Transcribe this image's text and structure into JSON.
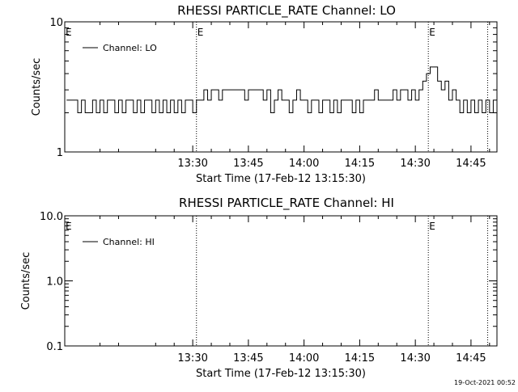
{
  "footer": {
    "timestamp": "19-Oct-2021 00:52"
  },
  "chart_data": [
    {
      "type": "line",
      "title": "RHESSI PARTICLE_RATE Channel: LO",
      "xlabel": "Start Time (17-Feb-12 13:15:30)",
      "ylabel": "Counts/sec",
      "yscale": "log",
      "ylim": [
        1,
        10
      ],
      "ytick_labels": [
        {
          "value": 1,
          "label": "1"
        },
        {
          "value": 10,
          "label": "10"
        }
      ],
      "xlim_minutes": [
        775.5,
        892
      ],
      "xticks": [
        {
          "t": 810,
          "label": "13:30"
        },
        {
          "t": 825,
          "label": "13:45"
        },
        {
          "t": 840,
          "label": "14:00"
        },
        {
          "t": 855,
          "label": "14:15"
        },
        {
          "t": 870,
          "label": "14:30"
        },
        {
          "t": 885,
          "label": "14:45"
        }
      ],
      "event_lines": [
        {
          "t": 811,
          "label": "E"
        },
        {
          "t": 873.5,
          "label": "E"
        },
        {
          "t": 889.5,
          "label": ""
        }
      ],
      "start_marker": "E",
      "legend": {
        "entry": "Channel: LO",
        "placement": "top-left"
      },
      "series": [
        {
          "name": "Channel: LO",
          "color": "#000000",
          "x": [
            776,
            778,
            779,
            780,
            781,
            782,
            783,
            784,
            785,
            786,
            787,
            788,
            789,
            790,
            791,
            792,
            793,
            794,
            795,
            796,
            797,
            798,
            799,
            800,
            801,
            802,
            803,
            804,
            805,
            806,
            807,
            808,
            809,
            810,
            811,
            812,
            813,
            814,
            815,
            816,
            817,
            818,
            819,
            820,
            821,
            822,
            823,
            824,
            825,
            826,
            827,
            828,
            829,
            830,
            831,
            832,
            833,
            834,
            835,
            836,
            837,
            838,
            839,
            840,
            841,
            842,
            843,
            844,
            845,
            846,
            847,
            848,
            849,
            850,
            851,
            852,
            853,
            854,
            855,
            856,
            857,
            858,
            859,
            860,
            861,
            862,
            863,
            864,
            865,
            866,
            867,
            868,
            869,
            870,
            871,
            872,
            873,
            874,
            875,
            876,
            877,
            878,
            879,
            880,
            881,
            882,
            883,
            884,
            885,
            886,
            887,
            888,
            889,
            890,
            891
          ],
          "y": [
            2.5,
            2.5,
            2.0,
            2.5,
            2.0,
            2.0,
            2.5,
            2.0,
            2.5,
            2.0,
            2.5,
            2.5,
            2.0,
            2.5,
            2.0,
            2.5,
            2.5,
            2.0,
            2.5,
            2.0,
            2.5,
            2.5,
            2.0,
            2.5,
            2.0,
            2.5,
            2.0,
            2.5,
            2.0,
            2.5,
            2.0,
            2.5,
            2.5,
            2.0,
            2.5,
            2.5,
            3.0,
            2.5,
            3.0,
            3.0,
            2.5,
            3.0,
            3.0,
            3.0,
            3.0,
            3.0,
            3.0,
            2.5,
            3.0,
            3.0,
            3.0,
            3.0,
            2.5,
            3.0,
            2.0,
            2.5,
            3.0,
            2.5,
            2.5,
            2.0,
            2.5,
            3.0,
            2.5,
            2.5,
            2.0,
            2.5,
            2.5,
            2.0,
            2.5,
            2.5,
            2.0,
            2.5,
            2.0,
            2.5,
            2.5,
            2.5,
            2.0,
            2.5,
            2.0,
            2.5,
            2.5,
            2.5,
            3.0,
            2.5,
            2.5,
            2.5,
            2.5,
            3.0,
            2.5,
            3.0,
            3.0,
            2.5,
            3.0,
            2.5,
            3.0,
            3.5,
            4.0,
            4.5,
            4.5,
            3.5,
            3.0,
            3.5,
            2.5,
            3.0,
            2.5,
            2.0,
            2.5,
            2.0,
            2.5,
            2.0,
            2.5,
            2.0,
            2.5,
            2.0,
            2.5
          ]
        }
      ]
    },
    {
      "type": "line",
      "title": "RHESSI PARTICLE_RATE Channel: HI",
      "xlabel": "Start Time (17-Feb-12 13:15:30)",
      "ylabel": "Counts/sec",
      "yscale": "log",
      "ylim": [
        0.1,
        10
      ],
      "ytick_labels": [
        {
          "value": 0.1,
          "label": "0.1"
        },
        {
          "value": 1,
          "label": "1.0"
        },
        {
          "value": 10,
          "label": "10.0"
        }
      ],
      "xlim_minutes": [
        775.5,
        892
      ],
      "xticks": [
        {
          "t": 810,
          "label": "13:30"
        },
        {
          "t": 825,
          "label": "13:45"
        },
        {
          "t": 840,
          "label": "14:00"
        },
        {
          "t": 855,
          "label": "14:15"
        },
        {
          "t": 870,
          "label": "14:30"
        },
        {
          "t": 885,
          "label": "14:45"
        }
      ],
      "event_lines": [
        {
          "t": 811,
          "label": ""
        },
        {
          "t": 873.5,
          "label": "E"
        },
        {
          "t": 889.5,
          "label": ""
        }
      ],
      "start_marker": "E",
      "legend": {
        "entry": "Channel: HI",
        "placement": "top-left"
      },
      "series": [
        {
          "name": "Channel: HI",
          "color": "#000000",
          "x": [],
          "y": []
        }
      ]
    }
  ]
}
